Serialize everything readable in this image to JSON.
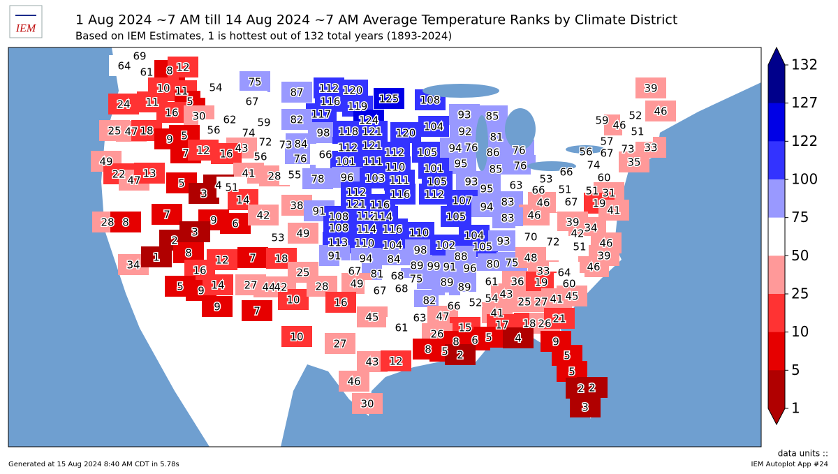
{
  "header": {
    "logo": "IEM",
    "title": "1 Aug 2024 ~7 AM till 14 Aug 2024 ~7 AM Average Temperature Ranks by Climate District",
    "subtitle": "Based on IEM Estimates, 1 is hottest out of 132 total years (1893-2024)"
  },
  "map": {
    "district_ranks": [
      69,
      64,
      61,
      8,
      12,
      10,
      11,
      24,
      11,
      5,
      16,
      30,
      54,
      75,
      67,
      87,
      112,
      120,
      125,
      108,
      116,
      119,
      117,
      124,
      62,
      59,
      82,
      25,
      47,
      18,
      56,
      74,
      9,
      5,
      98,
      118,
      121,
      120,
      104,
      93,
      85,
      92,
      81,
      72,
      73,
      84,
      56,
      76,
      43,
      7,
      12,
      16,
      112,
      121,
      112,
      105,
      94,
      76,
      86,
      76,
      66,
      101,
      111,
      95,
      85,
      76,
      49,
      22,
      47,
      13,
      5,
      41,
      28,
      55,
      78,
      96,
      103,
      111,
      110,
      101,
      105,
      93,
      95,
      63,
      53,
      66,
      66,
      51,
      51,
      74,
      60,
      31,
      56,
      67,
      57,
      73,
      35,
      33,
      59,
      46,
      51,
      52,
      46,
      39,
      3,
      4,
      51,
      14,
      38,
      91,
      112,
      116,
      112,
      107,
      94,
      83,
      46,
      46,
      67,
      19,
      41,
      121,
      116,
      105,
      83,
      39,
      34,
      42,
      28,
      8,
      7,
      9,
      6,
      42,
      108,
      112,
      114,
      108,
      114,
      116,
      53,
      49,
      110,
      104,
      105,
      93,
      70,
      72,
      51,
      46,
      39,
      46,
      2,
      3,
      113,
      110,
      104,
      98,
      102,
      88,
      34,
      1,
      8,
      12,
      7,
      18,
      16,
      25,
      91,
      94,
      84,
      89,
      99,
      91,
      96,
      80,
      75,
      48,
      67,
      81,
      68,
      75,
      89,
      33,
      64,
      5,
      9,
      14,
      27,
      44,
      42,
      10,
      28,
      49,
      67,
      68,
      89,
      61,
      36,
      19,
      60,
      45,
      9,
      7,
      16,
      82,
      66,
      52,
      54,
      43,
      25,
      27,
      41,
      63,
      47,
      45,
      41,
      18,
      26,
      21,
      61,
      15,
      17,
      26,
      10,
      27,
      8,
      6,
      5,
      4,
      9,
      8,
      5,
      2,
      43,
      12,
      5,
      5,
      46,
      2,
      2,
      30,
      3
    ]
  },
  "colorbar": {
    "ticks": [
      132,
      127,
      122,
      100,
      75,
      50,
      25,
      10,
      5,
      1
    ],
    "colors": [
      "#00008b",
      "#0000e6",
      "#3333ff",
      "#9999ff",
      "#ffffff",
      "#ff9999",
      "#ff3333",
      "#e60000",
      "#b00000"
    ]
  },
  "footer": {
    "generated": "Generated at 15 Aug 2024 8:40 AM CDT in 5.78s",
    "units": "data units ::",
    "app": "IEM Autoplot App #24"
  }
}
